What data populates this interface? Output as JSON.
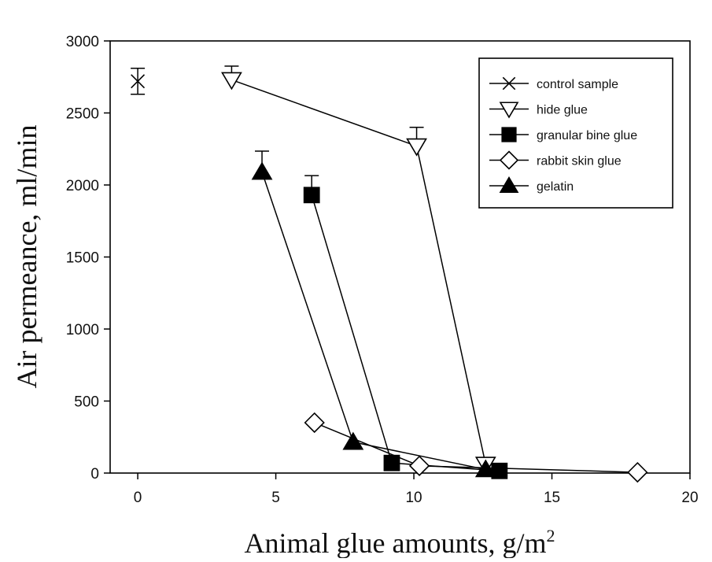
{
  "chart_data": {
    "type": "line",
    "title": "",
    "xlabel": "Animal glue amounts, g/m",
    "xlabel_superscript": "2",
    "ylabel": "Air permeance, ml/min",
    "xlim": [
      -1,
      20
    ],
    "ylim": [
      0,
      3000
    ],
    "xticks": [
      0,
      5,
      10,
      15,
      20
    ],
    "yticks": [
      0,
      500,
      1000,
      1500,
      2000,
      2500,
      3000
    ],
    "grid": false,
    "legend_position": "top-right",
    "series": [
      {
        "name": "control sample",
        "marker": "x",
        "fill": "none",
        "points": [
          {
            "x": 0,
            "y": 2720,
            "err": 90
          }
        ]
      },
      {
        "name": "hide glue",
        "marker": "triangle-down",
        "fill": "#ffffff",
        "points": [
          {
            "x": 3.4,
            "y": 2730,
            "err": 95
          },
          {
            "x": 10.1,
            "y": 2270,
            "err": 130
          },
          {
            "x": 12.6,
            "y": 60,
            "err": 0
          }
        ]
      },
      {
        "name": "granular bine glue",
        "marker": "square",
        "fill": "#000000",
        "points": [
          {
            "x": 6.3,
            "y": 1930,
            "err": 135
          },
          {
            "x": 9.2,
            "y": 70,
            "err": 0
          },
          {
            "x": 13.1,
            "y": 15,
            "err": 0
          }
        ]
      },
      {
        "name": "rabbit skin glue",
        "marker": "diamond",
        "fill": "#ffffff",
        "points": [
          {
            "x": 6.4,
            "y": 350,
            "err": 0
          },
          {
            "x": 10.2,
            "y": 50,
            "err": 0
          },
          {
            "x": 18.1,
            "y": 5,
            "err": 0
          }
        ]
      },
      {
        "name": "gelatin",
        "marker": "triangle-up",
        "fill": "#000000",
        "points": [
          {
            "x": 4.5,
            "y": 2090,
            "err": 145
          },
          {
            "x": 7.8,
            "y": 215,
            "err": 0
          },
          {
            "x": 12.6,
            "y": 25,
            "err": 0
          }
        ]
      }
    ]
  }
}
